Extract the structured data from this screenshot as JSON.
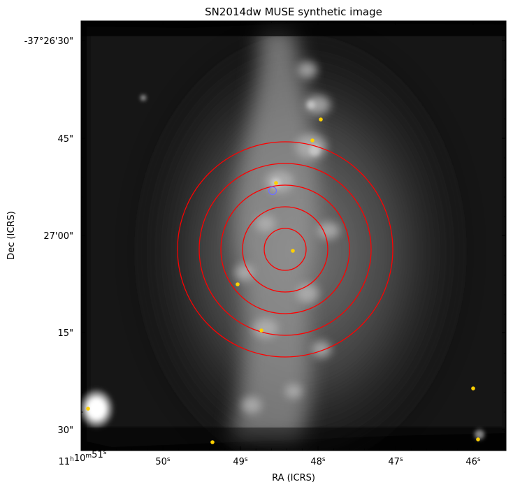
{
  "title": "SN2014dw MUSE synthetic image",
  "xlabel": "RA (ICRS)",
  "ylabel": "Dec (ICRS)",
  "dec_ticks": [
    {
      "label": "-37°26'30\""
    },
    {
      "label": "45\""
    },
    {
      "label": "27'00\""
    },
    {
      "label": "15\""
    },
    {
      "label": "30\""
    }
  ],
  "ra_ticks": [
    {
      "label": "11h10m51s"
    },
    {
      "label": "50s"
    },
    {
      "label": "49s"
    },
    {
      "label": "48s"
    },
    {
      "label": "47s"
    },
    {
      "label": "46s"
    }
  ],
  "rings": {
    "count": 5,
    "color": "#ff0000"
  },
  "sn_marker": {
    "color": "#7070ff"
  },
  "sources": {
    "color": "#ffd000",
    "count": 10
  },
  "colormap": "gray"
}
